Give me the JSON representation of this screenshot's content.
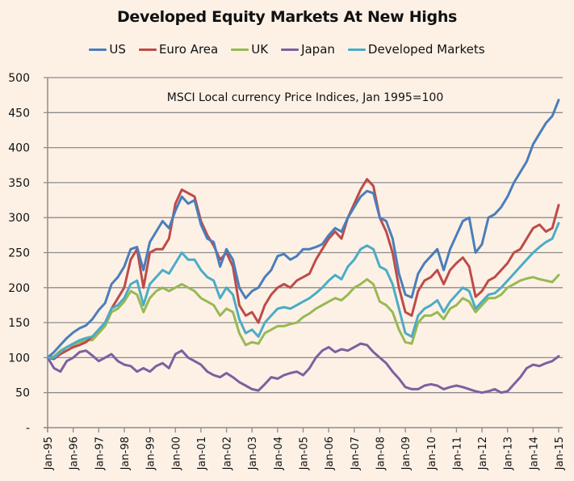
{
  "chart_data": {
    "type": "line",
    "title": "Developed Equity Markets At New Highs",
    "annotation": "MSCI Local currency Price Indices, Jan 1995=100",
    "xlabel": "",
    "ylabel": "",
    "ylim": [
      0,
      500
    ],
    "yticks": [
      0,
      50,
      100,
      150,
      200,
      250,
      300,
      350,
      400,
      450,
      500
    ],
    "ytick_labels": [
      "-",
      "50",
      "100",
      "150",
      "200",
      "250",
      "300",
      "350",
      "400",
      "450",
      "500"
    ],
    "xlim": [
      1995,
      2015.15
    ],
    "xticks": [
      1995,
      1996,
      1997,
      1998,
      1999,
      2000,
      2001,
      2002,
      2003,
      2004,
      2005,
      2006,
      2007,
      2008,
      2009,
      2010,
      2011,
      2012,
      2013,
      2014,
      2015
    ],
    "xtick_labels": [
      "Jan-95",
      "Jan-96",
      "Jan-97",
      "Jan-98",
      "Jan-99",
      "Jan-00",
      "Jan-01",
      "Jan-02",
      "Jan-03",
      "Jan-04",
      "Jan-05",
      "Jan-06",
      "Jan-07",
      "Jan-08",
      "Jan-09",
      "Jan-10",
      "Jan-11",
      "Jan-12",
      "Jan-13",
      "Jan-14",
      "Jan-15"
    ],
    "grid": "horizontal",
    "legend_position": "top",
    "x_step": "quarterly",
    "x_start": 1995,
    "series": [
      {
        "name": "US",
        "color": "#4a7ebb",
        "values": [
          100,
          108,
          118,
          128,
          136,
          142,
          146,
          155,
          168,
          178,
          205,
          215,
          230,
          255,
          258,
          225,
          265,
          280,
          295,
          285,
          310,
          330,
          320,
          325,
          290,
          270,
          265,
          230,
          255,
          240,
          200,
          185,
          195,
          200,
          215,
          225,
          245,
          248,
          240,
          245,
          255,
          255,
          258,
          262,
          275,
          285,
          280,
          300,
          315,
          330,
          338,
          335,
          300,
          295,
          270,
          220,
          190,
          186,
          220,
          235,
          245,
          255,
          225,
          255,
          275,
          295,
          300,
          250,
          262,
          300,
          305,
          315,
          330,
          350,
          365,
          380,
          405,
          420,
          435,
          445,
          468
        ]
      },
      {
        "name": "Euro Area",
        "color": "#be4b48",
        "values": [
          100,
          98,
          105,
          110,
          115,
          118,
          122,
          130,
          140,
          150,
          170,
          185,
          200,
          240,
          255,
          200,
          250,
          255,
          255,
          270,
          320,
          340,
          335,
          330,
          295,
          275,
          260,
          240,
          250,
          230,
          175,
          160,
          165,
          150,
          175,
          190,
          200,
          205,
          200,
          210,
          215,
          220,
          240,
          255,
          270,
          280,
          270,
          300,
          320,
          340,
          355,
          345,
          300,
          280,
          250,
          200,
          165,
          160,
          195,
          210,
          215,
          225,
          205,
          225,
          235,
          243,
          230,
          187,
          195,
          210,
          215,
          225,
          235,
          250,
          255,
          270,
          285,
          290,
          280,
          285,
          318
        ]
      },
      {
        "name": "UK",
        "color": "#98b954",
        "values": [
          100,
          102,
          110,
          115,
          118,
          122,
          125,
          125,
          135,
          145,
          165,
          170,
          180,
          195,
          190,
          165,
          185,
          195,
          200,
          195,
          200,
          205,
          200,
          195,
          185,
          180,
          175,
          160,
          170,
          165,
          135,
          118,
          122,
          120,
          135,
          140,
          145,
          145,
          148,
          150,
          158,
          163,
          170,
          175,
          180,
          185,
          182,
          190,
          200,
          205,
          212,
          205,
          180,
          175,
          165,
          140,
          122,
          120,
          150,
          160,
          160,
          165,
          155,
          170,
          175,
          185,
          180,
          165,
          175,
          185,
          185,
          190,
          200,
          205,
          210,
          213,
          215,
          212,
          210,
          208,
          218
        ]
      },
      {
        "name": "Japan",
        "color": "#7d60a0",
        "values": [
          100,
          85,
          80,
          95,
          100,
          108,
          110,
          103,
          95,
          100,
          105,
          95,
          90,
          88,
          80,
          85,
          80,
          88,
          92,
          85,
          105,
          110,
          100,
          95,
          90,
          80,
          75,
          72,
          78,
          72,
          65,
          60,
          55,
          53,
          62,
          72,
          70,
          75,
          78,
          80,
          75,
          85,
          100,
          110,
          115,
          108,
          112,
          110,
          115,
          120,
          118,
          108,
          100,
          92,
          80,
          70,
          58,
          55,
          55,
          60,
          62,
          60,
          55,
          58,
          60,
          58,
          55,
          52,
          50,
          52,
          55,
          50,
          52,
          62,
          72,
          85,
          90,
          88,
          92,
          95,
          102
        ]
      },
      {
        "name": "Developed Markets",
        "color": "#4bacc6",
        "values": [
          100,
          100,
          108,
          115,
          120,
          125,
          128,
          130,
          140,
          150,
          170,
          175,
          185,
          205,
          210,
          175,
          205,
          215,
          225,
          220,
          235,
          250,
          240,
          240,
          225,
          215,
          210,
          185,
          200,
          190,
          155,
          135,
          140,
          130,
          150,
          160,
          170,
          172,
          170,
          175,
          180,
          185,
          192,
          200,
          210,
          218,
          212,
          230,
          240,
          255,
          260,
          255,
          230,
          225,
          205,
          170,
          135,
          130,
          160,
          170,
          175,
          182,
          165,
          180,
          190,
          200,
          195,
          170,
          180,
          190,
          192,
          200,
          210,
          220,
          230,
          240,
          250,
          258,
          265,
          270,
          292
        ]
      }
    ]
  }
}
